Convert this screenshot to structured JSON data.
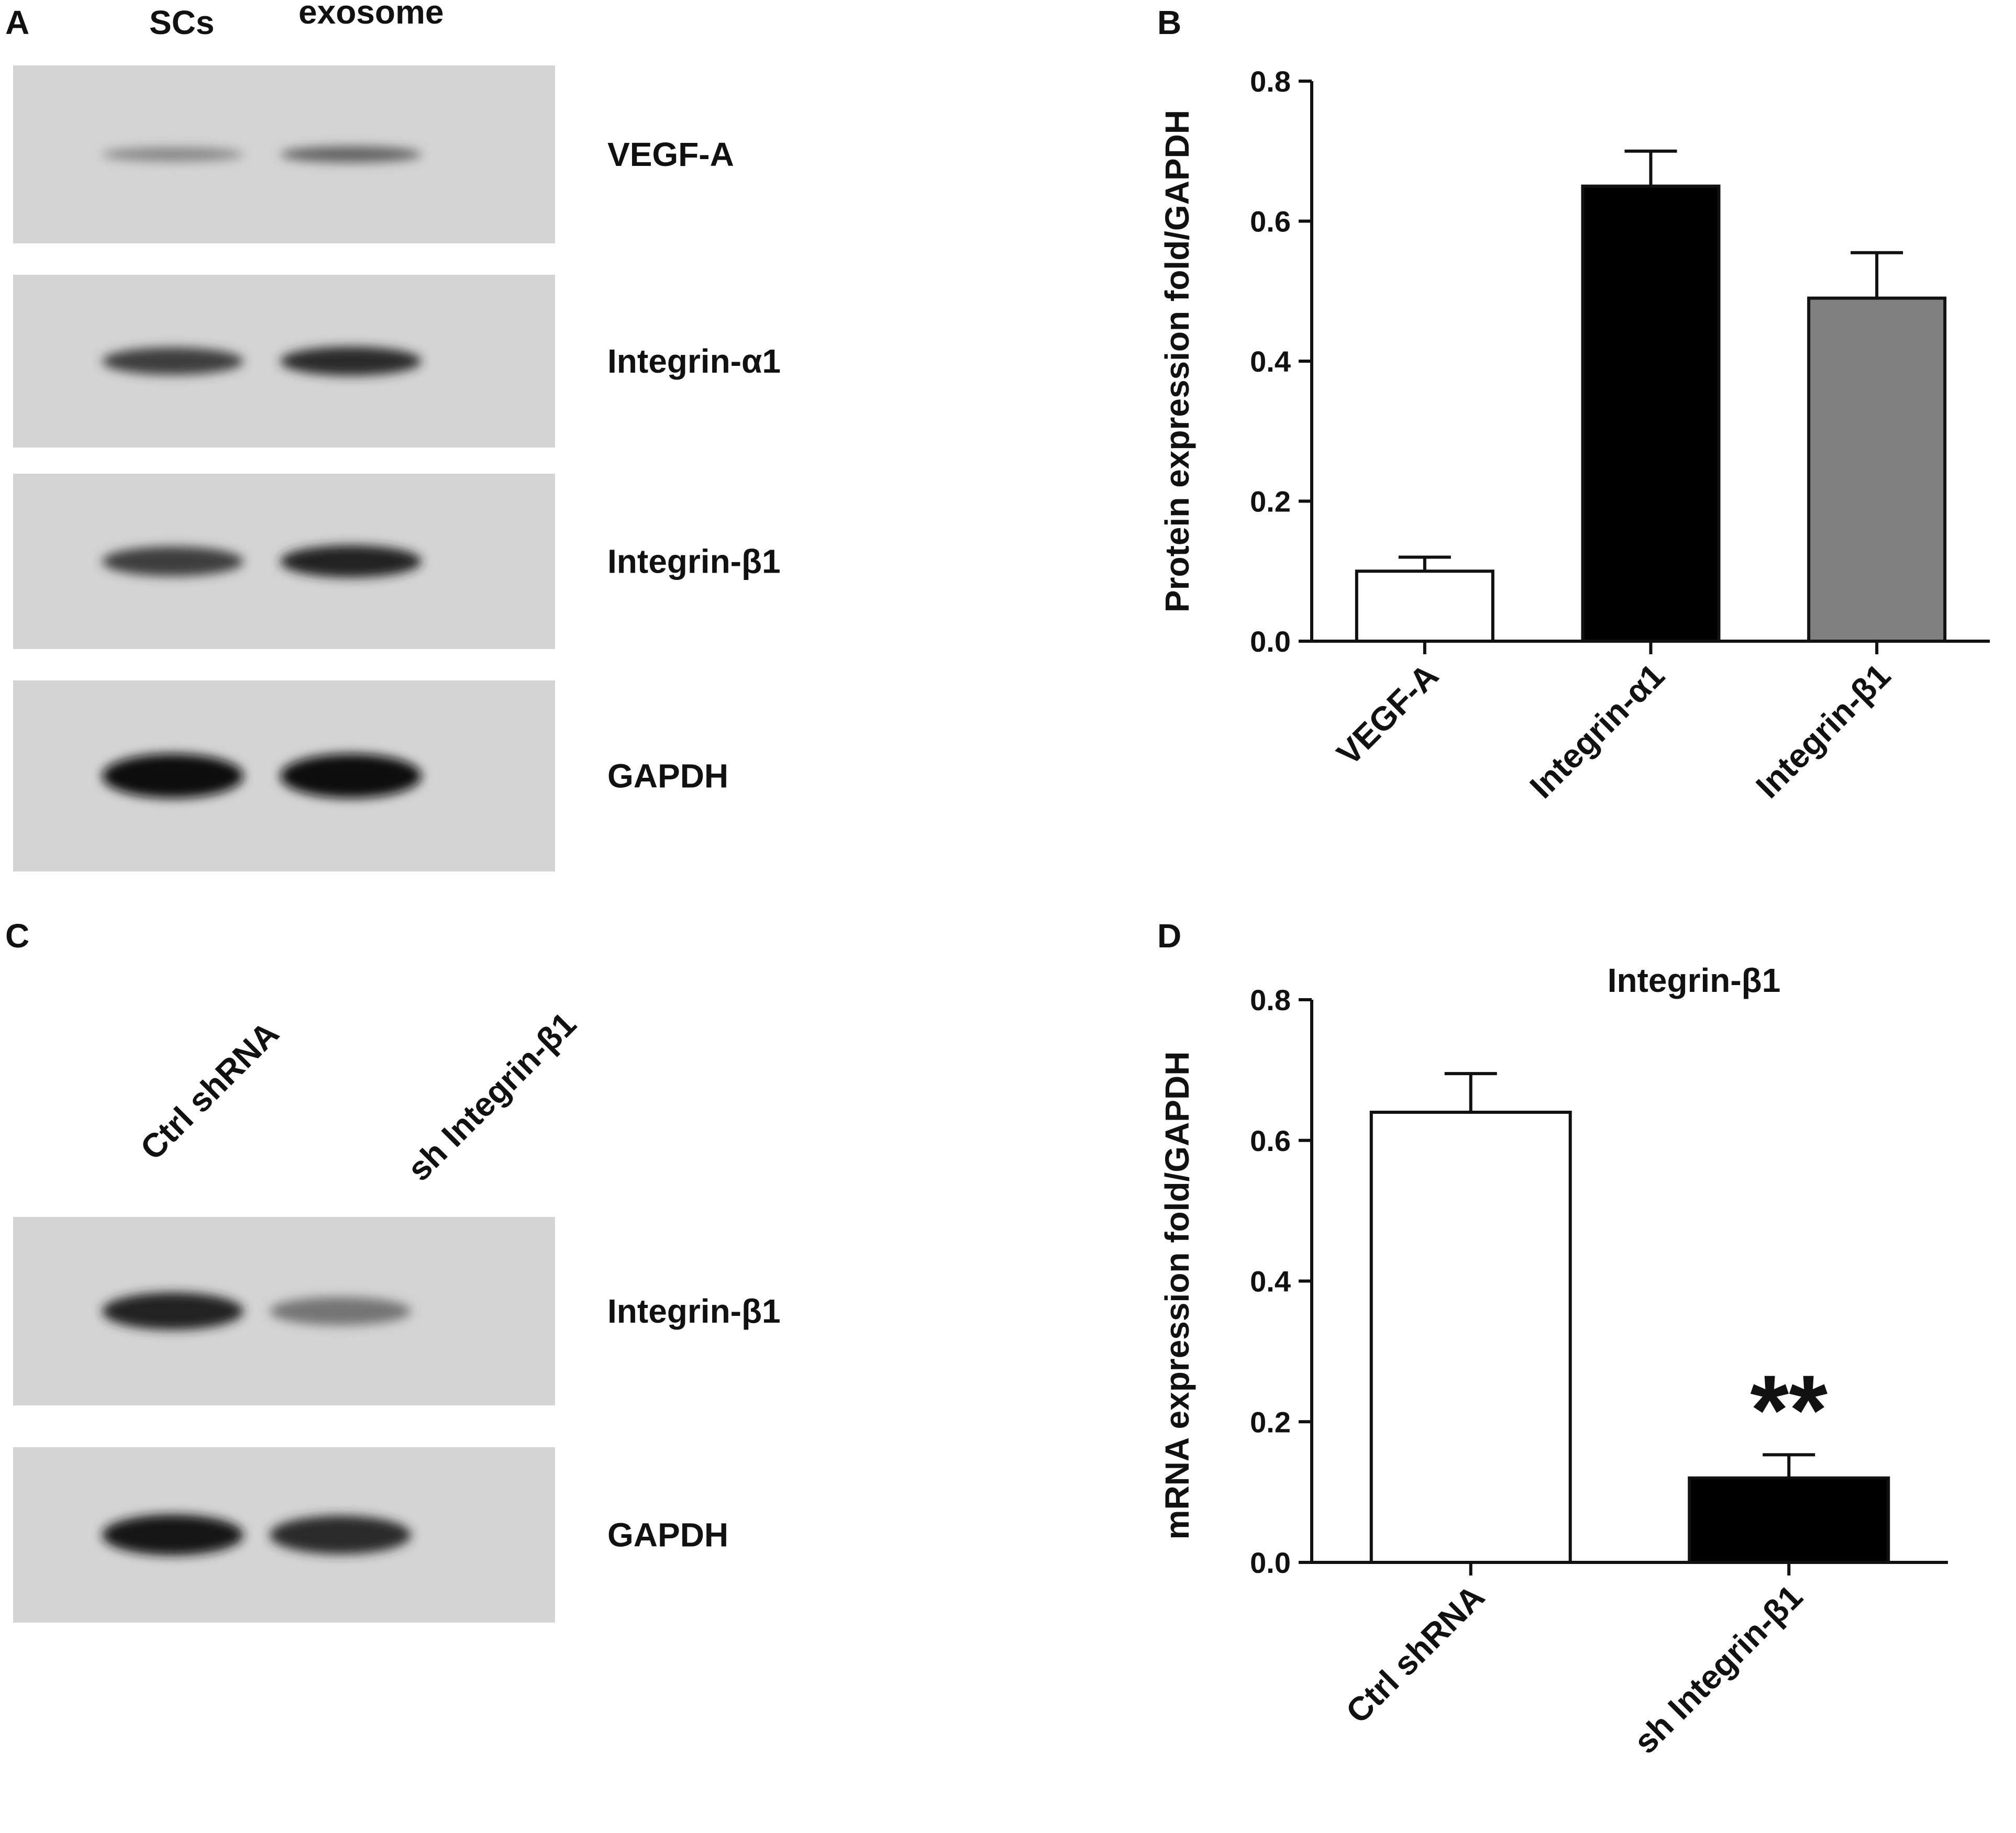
{
  "panel_letters": [
    "A",
    "B",
    "C",
    "D"
  ],
  "blot_a": {
    "lanes": [
      "SCs",
      "exosome"
    ],
    "rows": [
      {
        "label": "VEGF-A",
        "intensity": [
          0.35,
          0.55
        ]
      },
      {
        "label": "Integrin-α1",
        "intensity": [
          0.75,
          0.85
        ]
      },
      {
        "label": "Integrin-β1",
        "intensity": [
          0.75,
          0.9
        ]
      },
      {
        "label": "GAPDH",
        "intensity": [
          1.0,
          1.0
        ]
      }
    ]
  },
  "blot_c": {
    "lanes": [
      "Ctrl shRNA",
      "sh Integrin-β1"
    ],
    "rows": [
      {
        "label": "Integrin-β1",
        "intensity": [
          0.9,
          0.45
        ]
      },
      {
        "label": "GAPDH",
        "intensity": [
          0.95,
          0.85
        ]
      }
    ]
  },
  "chart_data": [
    {
      "panel": "B",
      "type": "bar",
      "title": "",
      "xlabel": "",
      "ylabel": "Protein expression fold/GAPDH",
      "categories": [
        "VEGF-A",
        "Integrin-α1",
        "Integrin-β1"
      ],
      "values": [
        0.1,
        0.65,
        0.49
      ],
      "errors": [
        0.02,
        0.05,
        0.065
      ],
      "bar_colors": [
        "#ffffff",
        "#000000",
        "#808080"
      ],
      "ylim": [
        0,
        0.8
      ],
      "yticks": [
        "0.0",
        "0.2",
        "0.4",
        "0.6",
        "0.8"
      ],
      "grid": false
    },
    {
      "panel": "D",
      "type": "bar",
      "title": "Integrin-β1",
      "xlabel": "",
      "ylabel": "mRNA expression fold/GAPDH",
      "categories": [
        "Ctrl shRNA",
        "sh Integrin-β1"
      ],
      "values": [
        0.64,
        0.12
      ],
      "errors": [
        0.055,
        0.033
      ],
      "bar_colors": [
        "#ffffff",
        "#000000"
      ],
      "significance": [
        "",
        "**"
      ],
      "ylim": [
        0,
        0.8
      ],
      "yticks": [
        "0.0",
        "0.2",
        "0.4",
        "0.6",
        "0.8"
      ],
      "grid": false
    }
  ]
}
